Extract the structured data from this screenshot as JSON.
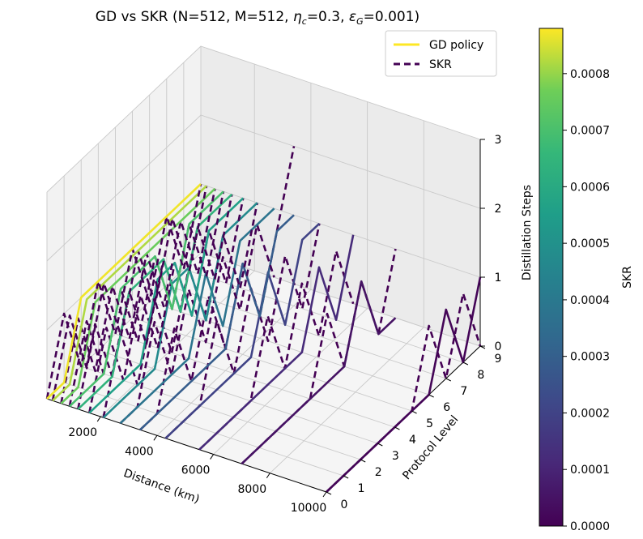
{
  "chart_data": {
    "type": "line3d",
    "title": "GD vs SKR (N=512, M=512, η_c=0.3, ε_G=0.001)",
    "xlabel": "Distance (km)",
    "ylabel": "Protocol Level",
    "zlabel": "Distillation Steps",
    "xlim": [
      100,
      10000
    ],
    "ylim": [
      0,
      9
    ],
    "zlim": [
      0,
      3
    ],
    "xticks": [
      "2000",
      "4000",
      "6000",
      "8000",
      "10000"
    ],
    "yticks": [
      "0",
      "1",
      "2",
      "3",
      "4",
      "5",
      "6",
      "7",
      "8",
      "9"
    ],
    "zticks": [
      "0",
      "1",
      "2",
      "3"
    ],
    "legend": {
      "location": "top-right",
      "entries": [
        {
          "label": "GD policy",
          "style": "solid",
          "color": "#fde725"
        },
        {
          "label": "SKR",
          "style": "dashed",
          "color": "#440154"
        }
      ]
    },
    "colorbar": {
      "label": "SKR",
      "colormap": "viridis",
      "range": [
        0,
        0.00088
      ],
      "ticks": [
        "0.0000",
        "0.0001",
        "0.0002",
        "0.0003",
        "0.0004",
        "0.0005",
        "0.0006",
        "0.0007",
        "0.0008"
      ]
    },
    "series": [
      {
        "distance": 100,
        "skr": 0.00087,
        "gd": [
          0,
          0,
          1,
          1,
          1,
          1,
          1,
          1,
          1,
          1
        ],
        "skr_steps": [
          0,
          1,
          0,
          1,
          0,
          1,
          0,
          1,
          0,
          1
        ]
      },
      {
        "distance": 300,
        "skr": 0.00082,
        "gd": [
          0,
          0,
          1,
          1,
          1,
          1,
          1,
          1,
          1,
          1
        ],
        "skr_steps": [
          0,
          1,
          0,
          1,
          0,
          1,
          0,
          1,
          0,
          1
        ]
      },
      {
        "distance": 600,
        "skr": 0.00076,
        "gd": [
          0,
          0,
          1,
          1,
          1,
          1,
          1,
          1,
          1,
          1
        ],
        "skr_steps": [
          0,
          1,
          0,
          1,
          0,
          1,
          0,
          1,
          0,
          1
        ]
      },
      {
        "distance": 900,
        "skr": 0.0007,
        "gd": [
          0,
          0,
          0,
          1,
          1,
          1,
          0,
          1,
          1,
          1
        ],
        "skr_steps": [
          0,
          1,
          0,
          1,
          0,
          1,
          0,
          1,
          0,
          1
        ]
      },
      {
        "distance": 1200,
        "skr": 0.00064,
        "gd": [
          0,
          0,
          0,
          1,
          1,
          1,
          0,
          1,
          1,
          1
        ],
        "skr_steps": [
          0,
          1,
          0,
          1,
          0,
          1,
          0,
          1,
          0,
          1
        ]
      },
      {
        "distance": 1600,
        "skr": 0.00056,
        "gd": [
          0,
          0,
          0,
          0,
          1,
          1,
          0,
          1,
          1,
          1
        ],
        "skr_steps": [
          0,
          1,
          0,
          1,
          0,
          1,
          0,
          1,
          0,
          1
        ]
      },
      {
        "distance": 2100,
        "skr": 0.00047,
        "gd": [
          0,
          0,
          0,
          0,
          1,
          1,
          0,
          1,
          1,
          1
        ],
        "skr_steps": [
          0,
          1,
          0,
          1,
          0,
          1,
          0,
          1,
          0,
          1
        ]
      },
      {
        "distance": 2700,
        "skr": 0.00038,
        "gd": [
          0,
          0,
          0,
          0,
          0,
          1,
          0,
          1,
          1,
          1
        ],
        "skr_steps": [
          0,
          0,
          1,
          0,
          1,
          0,
          1,
          0,
          1,
          0
        ]
      },
      {
        "distance": 3400,
        "skr": 0.00029,
        "gd": [
          0,
          0,
          0,
          0,
          0,
          0,
          1,
          0,
          1,
          1
        ],
        "skr_steps": [
          0,
          0,
          1,
          0,
          1,
          0,
          1,
          0,
          1,
          2
        ]
      },
      {
        "distance": 4300,
        "skr": 0.0002,
        "gd": [
          0,
          0,
          0,
          0,
          0,
          0,
          1,
          0,
          1,
          1
        ],
        "skr_steps": [
          0,
          0,
          0,
          1,
          0,
          1,
          0,
          1,
          0,
          1
        ]
      },
      {
        "distance": 5500,
        "skr": 0.00012,
        "gd": [
          0,
          0,
          0,
          0,
          0,
          0,
          0,
          1,
          0,
          1
        ],
        "skr_steps": [
          0,
          0,
          0,
          0,
          1,
          0,
          1,
          0,
          1,
          0
        ]
      },
      {
        "distance": 7000,
        "skr": 5e-05,
        "gd": [
          0,
          0,
          0,
          0,
          0,
          0,
          0,
          1,
          0,
          0
        ],
        "skr_steps": [
          0,
          0,
          0,
          0,
          0,
          1,
          0,
          1,
          0,
          1
        ]
      },
      {
        "distance": 10000,
        "skr": 1e-05,
        "gd": [
          0,
          0,
          0,
          0,
          0,
          0,
          0,
          1,
          0,
          1
        ],
        "skr_steps": [
          0,
          0,
          0,
          0,
          0,
          0,
          1,
          0,
          1,
          0
        ]
      }
    ]
  }
}
